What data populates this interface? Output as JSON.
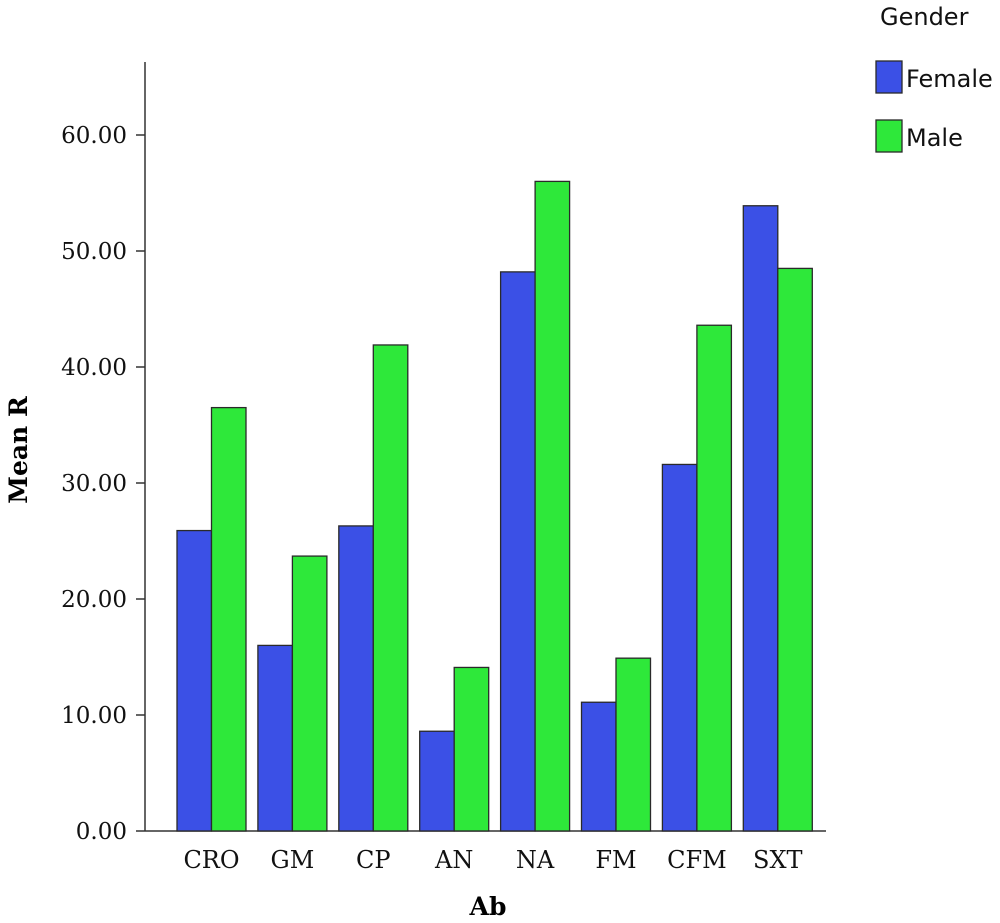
{
  "chart_data": {
    "type": "bar",
    "xlabel": "Ab",
    "ylabel": "Mean R",
    "ylim": [
      0,
      65
    ],
    "yticks": [
      "0.00",
      "10.00",
      "20.00",
      "30.00",
      "40.00",
      "50.00",
      "60.00"
    ],
    "grid": false,
    "legend_title": "Gender",
    "legend_placement": "top-right",
    "categories": [
      "CRO",
      "GM",
      "CP",
      "AN",
      "NA",
      "FM",
      "CFM",
      "SXT"
    ],
    "series": [
      {
        "name": "Female",
        "color": "#3b50e6",
        "values": [
          25.9,
          16.0,
          26.3,
          8.6,
          48.2,
          11.1,
          31.6,
          53.9
        ]
      },
      {
        "name": "Male",
        "color": "#2ee83a",
        "values": [
          36.5,
          23.7,
          41.9,
          14.1,
          56.0,
          14.9,
          43.6,
          48.5
        ]
      }
    ]
  }
}
